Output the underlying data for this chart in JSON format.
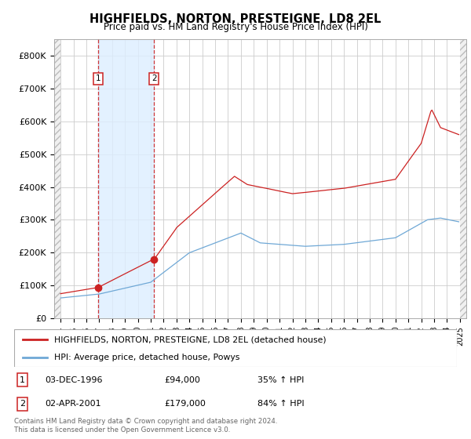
{
  "title": "HIGHFIELDS, NORTON, PRESTEIGNE, LD8 2EL",
  "subtitle": "Price paid vs. HM Land Registry's House Price Index (HPI)",
  "ylim": [
    0,
    850000
  ],
  "yticks": [
    0,
    100000,
    200000,
    300000,
    400000,
    500000,
    600000,
    700000,
    800000
  ],
  "ytick_labels": [
    "£0",
    "£100K",
    "£200K",
    "£300K",
    "£400K",
    "£500K",
    "£600K",
    "£700K",
    "£800K"
  ],
  "xlim_start": 1993.5,
  "xlim_end": 2025.5,
  "sale1_x": 1996.92,
  "sale1_y": 94000,
  "sale2_x": 2001.25,
  "sale2_y": 179000,
  "hpi_color": "#6fa8d6",
  "price_color": "#cc2222",
  "shade_color": "#ddeeff",
  "background_color": "#ffffff",
  "grid_color": "#cccccc",
  "legend_label_red": "HIGHFIELDS, NORTON, PRESTEIGNE, LD8 2EL (detached house)",
  "legend_label_blue": "HPI: Average price, detached house, Powys",
  "table_row1": [
    "1",
    "03-DEC-1996",
    "£94,000",
    "35% ↑ HPI"
  ],
  "table_row2": [
    "2",
    "02-APR-2001",
    "£179,000",
    "84% ↑ HPI"
  ],
  "footer": "Contains HM Land Registry data © Crown copyright and database right 2024.\nThis data is licensed under the Open Government Licence v3.0."
}
